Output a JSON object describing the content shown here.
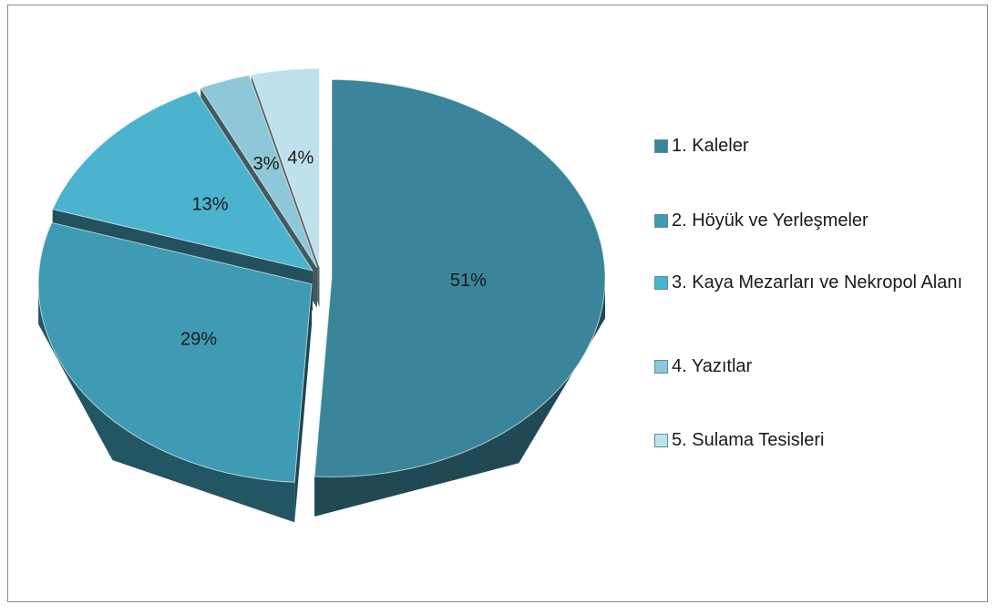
{
  "chart_data": {
    "type": "pie",
    "categories": [
      "1. Kaleler",
      "2. Höyük ve Yerleşmeler",
      "3. Kaya Mezarları ve Nekropol Alanı",
      "4. Yazıtlar",
      "5. Sulama Tesisleri"
    ],
    "values": [
      51,
      29,
      13,
      3,
      4
    ],
    "value_labels": [
      "51%",
      "29%",
      "13%",
      "3%",
      "4%"
    ],
    "colors": [
      "#3a8599",
      "#3f9ab4",
      "#4cb3cf",
      "#8ec7d7",
      "#bfe1eb"
    ],
    "legend": "right"
  }
}
